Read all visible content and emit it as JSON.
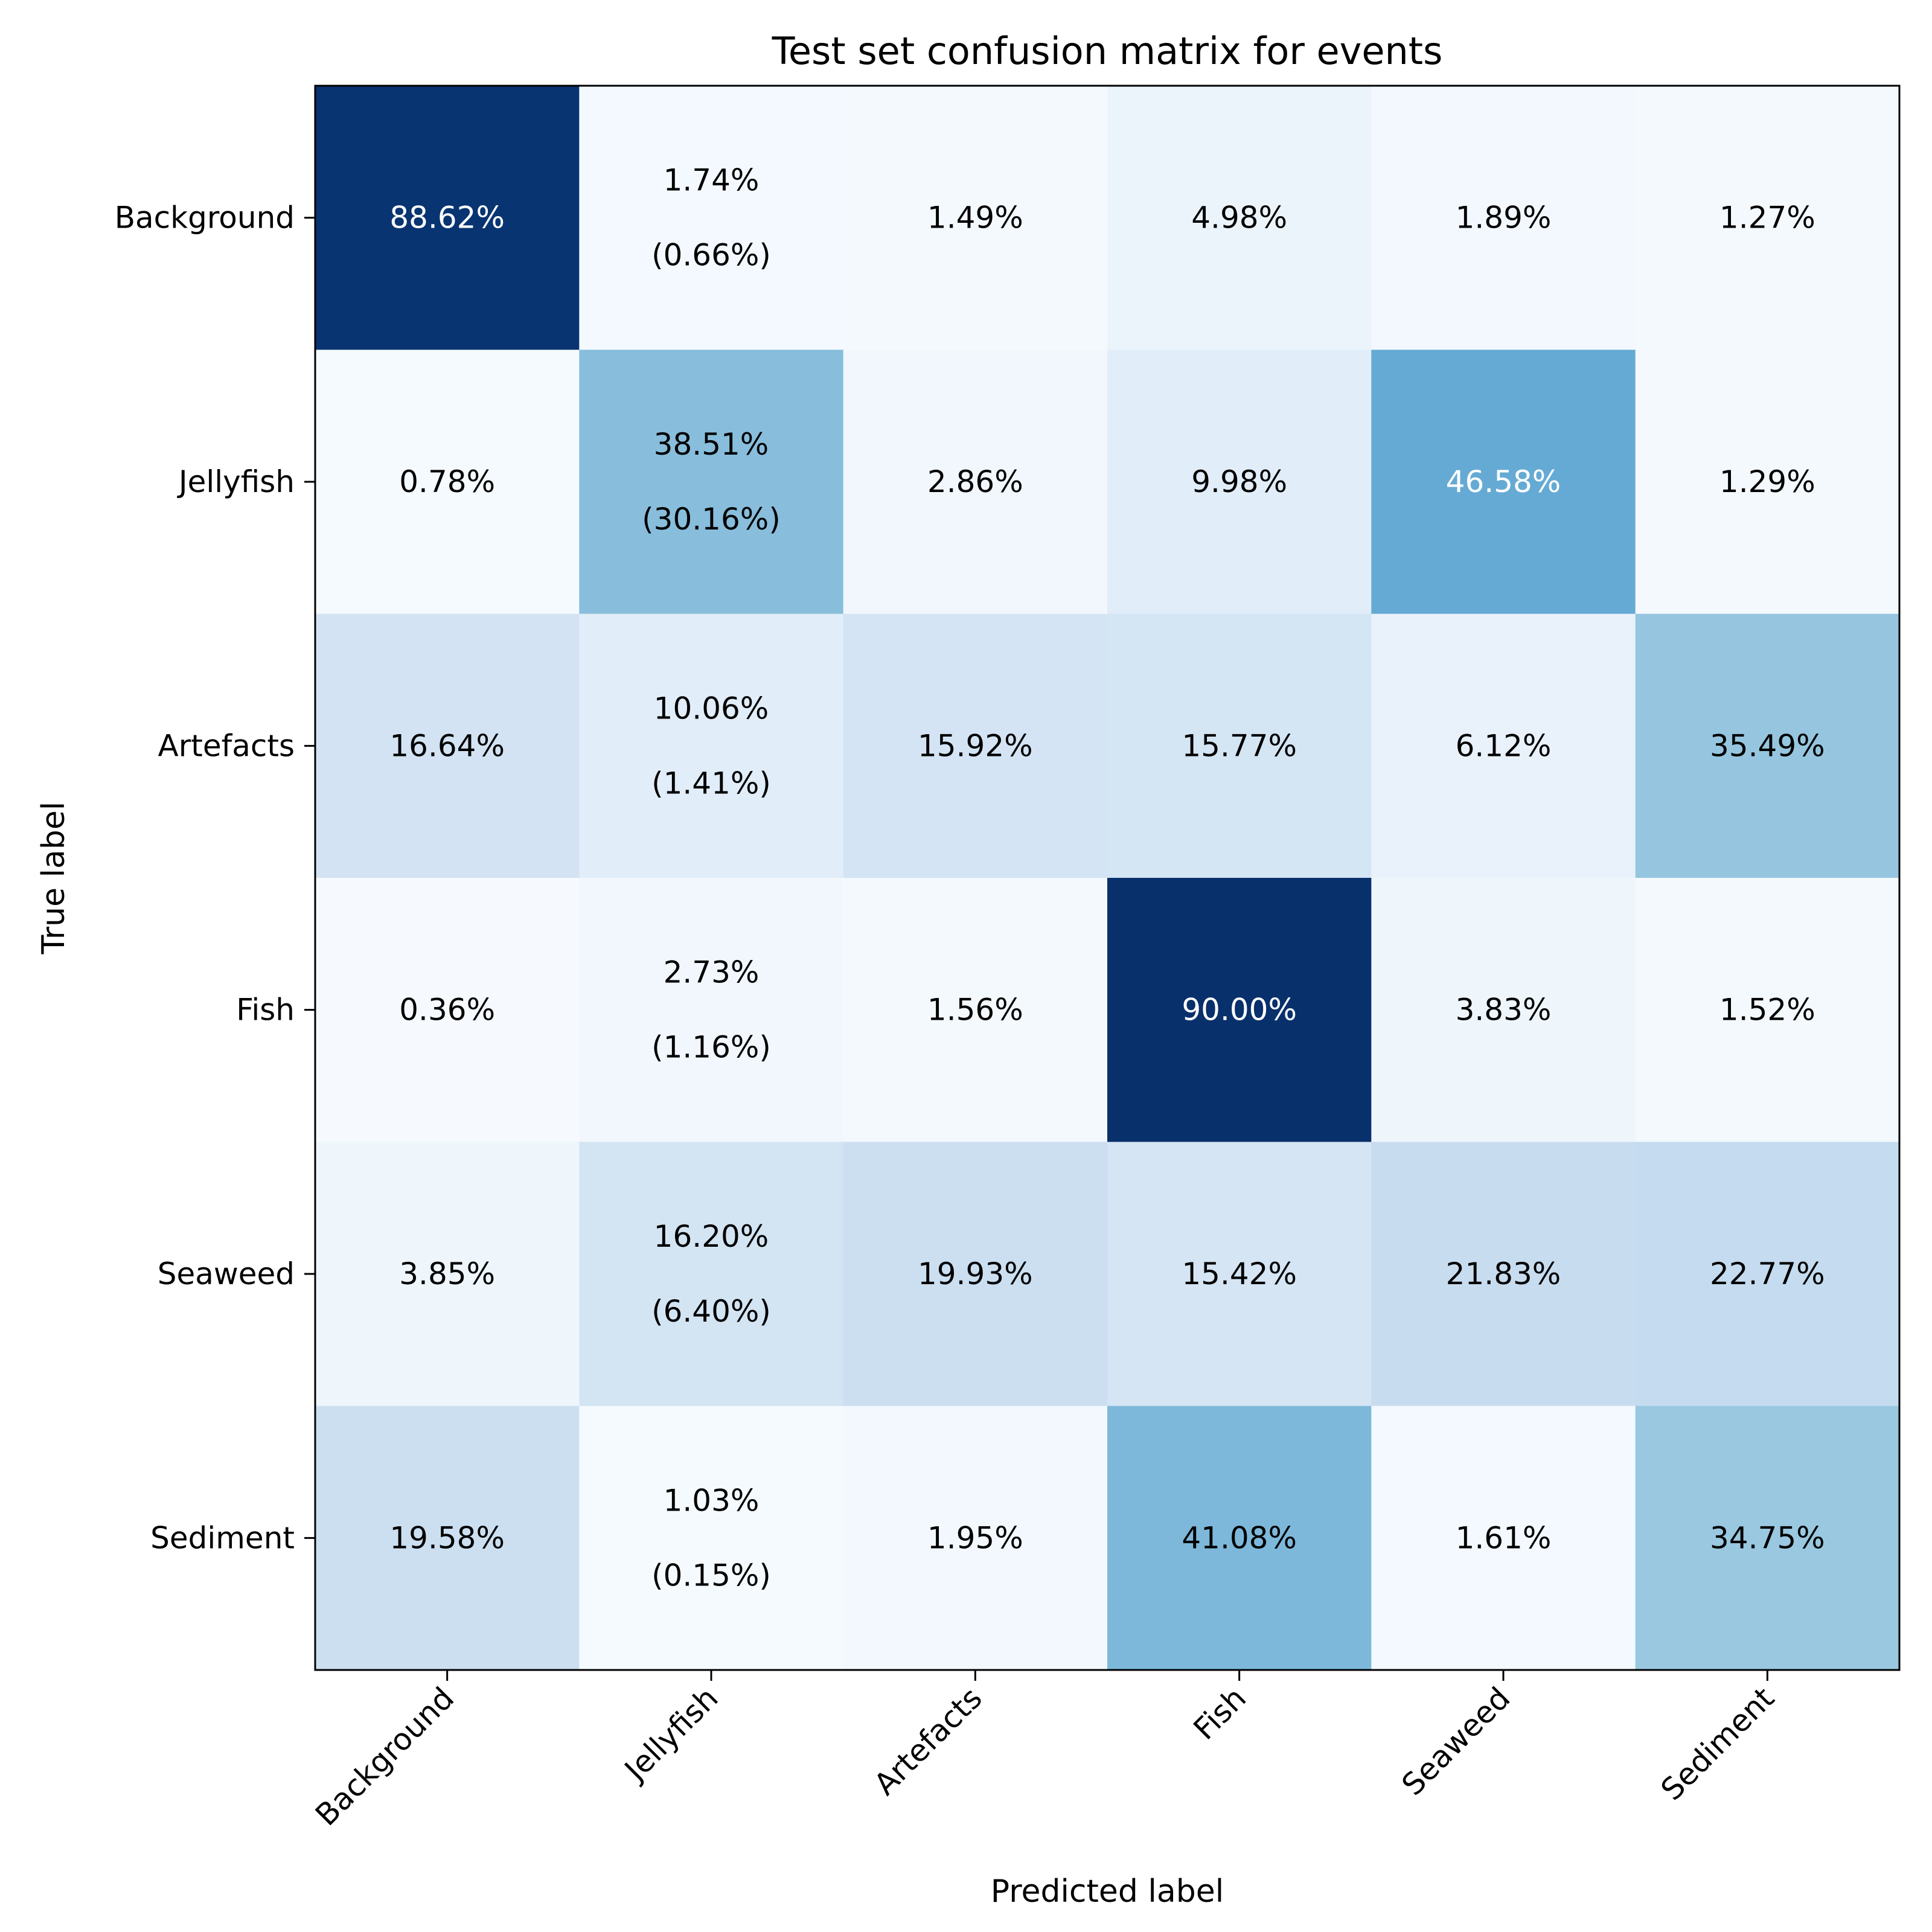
{
  "chart_data": {
    "type": "heatmap",
    "title": "Test set confusion matrix for events",
    "xlabel": "Predicted label",
    "ylabel": "True label",
    "colormap": "Blues",
    "x_categories": [
      "Background",
      "Jellyfish",
      "Artefacts",
      "Fish",
      "Seaweed",
      "Sediment"
    ],
    "y_categories": [
      "Background",
      "Jellyfish",
      "Artefacts",
      "Fish",
      "Seaweed",
      "Sediment"
    ],
    "values": [
      [
        88.62,
        1.74,
        1.49,
        4.98,
        1.89,
        1.27
      ],
      [
        0.78,
        38.51,
        2.86,
        9.98,
        46.58,
        1.29
      ],
      [
        16.64,
        10.06,
        15.92,
        15.77,
        6.12,
        35.49
      ],
      [
        0.36,
        2.73,
        1.56,
        90.0,
        3.83,
        1.52
      ],
      [
        3.85,
        16.2,
        19.93,
        15.42,
        21.83,
        22.77
      ],
      [
        19.58,
        1.03,
        1.95,
        41.08,
        1.61,
        34.75
      ]
    ],
    "labels": [
      [
        "88.62%",
        "1.74%",
        "1.49%",
        "4.98%",
        "1.89%",
        "1.27%"
      ],
      [
        "0.78%",
        "38.51%",
        "2.86%",
        "9.98%",
        "46.58%",
        "1.29%"
      ],
      [
        "16.64%",
        "10.06%",
        "15.92%",
        "15.77%",
        "6.12%",
        "35.49%"
      ],
      [
        "0.36%",
        "2.73%",
        "1.56%",
        "90.00%",
        "3.83%",
        "1.52%"
      ],
      [
        "3.85%",
        "16.20%",
        "19.93%",
        "15.42%",
        "21.83%",
        "22.77%"
      ],
      [
        "19.58%",
        "1.03%",
        "1.95%",
        "41.08%",
        "1.61%",
        "34.75%"
      ]
    ],
    "secondary_labels": [
      [
        null,
        "(0.66%)",
        null,
        null,
        null,
        null
      ],
      [
        null,
        "(30.16%)",
        null,
        null,
        null,
        null
      ],
      [
        null,
        "(1.41%)",
        null,
        null,
        null,
        null
      ],
      [
        null,
        "(1.16%)",
        null,
        null,
        null,
        null
      ],
      [
        null,
        "(6.40%)",
        null,
        null,
        null,
        null
      ],
      [
        null,
        "(0.15%)",
        null,
        null,
        null,
        null
      ]
    ],
    "vmin": 0,
    "vmax": 90,
    "colors": {
      "low": "#f7fbff",
      "high": "#08306b",
      "text_dark": "#000000",
      "text_light": "#ffffff"
    }
  }
}
